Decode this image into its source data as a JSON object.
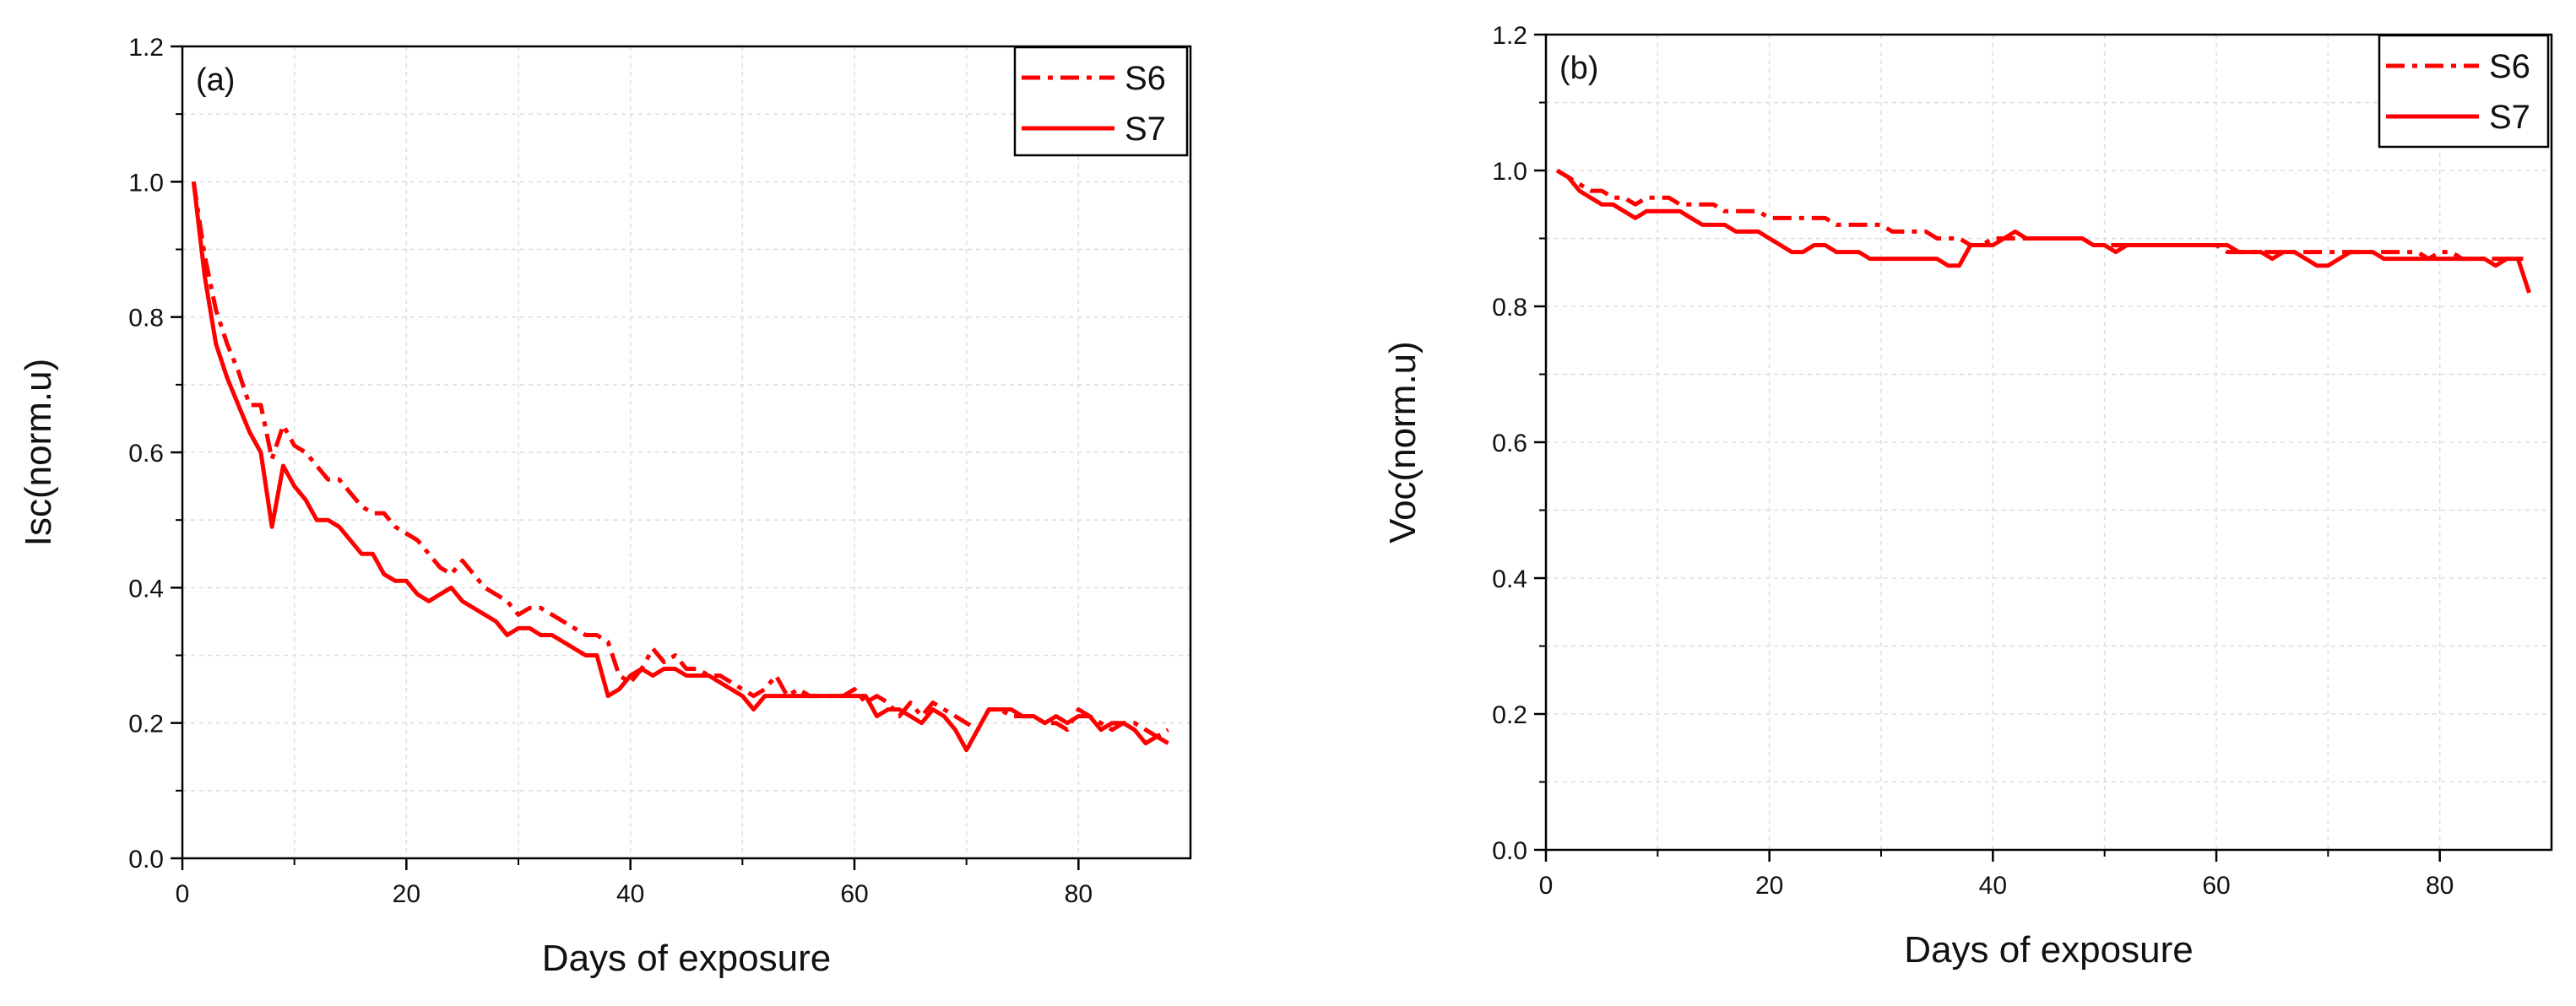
{
  "chart_data": [
    {
      "type": "line",
      "panel_label": "(a)",
      "xlabel": "Days of exposure",
      "ylabel": "Isc(norm.u)",
      "xlim": [
        0,
        90
      ],
      "ylim": [
        0,
        1.2
      ],
      "xticks": [
        0,
        20,
        40,
        60,
        80
      ],
      "xtick_labels": [
        "0",
        "20",
        "40",
        "60",
        "80"
      ],
      "yticks": [
        0,
        0.2,
        0.4,
        0.6,
        0.8,
        1.0,
        1.2
      ],
      "ytick_labels": [
        "0.0",
        "0.2",
        "0.4",
        "0.6",
        "0.8",
        "1.0",
        "1.2"
      ],
      "grid": true,
      "legend_position": "top-right",
      "series": [
        {
          "name": "S6",
          "style": "dash-dot",
          "color": "#ff0000",
          "x": [
            1,
            2,
            3,
            4,
            5,
            6,
            7,
            8,
            9,
            10,
            11,
            12,
            13,
            14,
            15,
            16,
            17,
            18,
            19,
            20,
            21,
            22,
            23,
            24,
            25,
            26,
            27,
            28,
            29,
            30,
            31,
            32,
            33,
            34,
            35,
            36,
            37,
            38,
            39,
            40,
            41,
            42,
            43,
            44,
            45,
            46,
            47,
            48,
            49,
            50,
            51,
            52,
            53,
            54,
            55,
            56,
            57,
            58,
            59,
            60,
            61,
            62,
            63,
            64,
            65,
            66,
            67,
            68,
            69,
            70,
            71,
            72,
            73,
            74,
            75,
            76,
            77,
            78,
            79,
            80,
            81,
            82,
            83,
            84,
            85,
            86,
            87,
            88
          ],
          "values": [
            1.0,
            0.89,
            0.81,
            0.76,
            0.72,
            0.67,
            0.67,
            0.59,
            0.64,
            0.61,
            0.6,
            0.58,
            0.56,
            0.56,
            0.54,
            0.52,
            0.51,
            0.51,
            0.49,
            0.48,
            0.47,
            0.45,
            0.43,
            0.42,
            0.44,
            0.42,
            0.4,
            0.39,
            0.38,
            0.36,
            0.37,
            0.37,
            0.36,
            0.35,
            0.34,
            0.33,
            0.33,
            0.32,
            0.27,
            0.26,
            0.28,
            0.31,
            0.29,
            0.3,
            0.28,
            0.28,
            0.27,
            0.27,
            0.26,
            0.25,
            0.24,
            0.25,
            0.27,
            0.24,
            0.25,
            0.24,
            0.24,
            0.24,
            0.24,
            0.25,
            0.23,
            0.24,
            0.23,
            0.21,
            0.23,
            0.21,
            0.23,
            0.22,
            0.21,
            0.2,
            0.19,
            0.22,
            0.22,
            0.21,
            0.21,
            0.21,
            0.2,
            0.2,
            0.19,
            0.22,
            0.21,
            0.2,
            0.19,
            0.2,
            0.2,
            0.19,
            0.18,
            0.19
          ]
        },
        {
          "name": "S7",
          "style": "solid",
          "color": "#ff0000",
          "x": [
            1,
            2,
            3,
            4,
            5,
            6,
            7,
            8,
            9,
            10,
            11,
            12,
            13,
            14,
            15,
            16,
            17,
            18,
            19,
            20,
            21,
            22,
            23,
            24,
            25,
            26,
            27,
            28,
            29,
            30,
            31,
            32,
            33,
            34,
            35,
            36,
            37,
            38,
            39,
            40,
            41,
            42,
            43,
            44,
            45,
            46,
            47,
            48,
            49,
            50,
            51,
            52,
            53,
            54,
            55,
            56,
            57,
            58,
            59,
            60,
            61,
            62,
            63,
            64,
            65,
            66,
            67,
            68,
            69,
            70,
            71,
            72,
            73,
            74,
            75,
            76,
            77,
            78,
            79,
            80,
            81,
            82,
            83,
            84,
            85,
            86,
            87,
            88
          ],
          "values": [
            1.0,
            0.86,
            0.76,
            0.71,
            0.67,
            0.63,
            0.6,
            0.49,
            0.58,
            0.55,
            0.53,
            0.5,
            0.5,
            0.49,
            0.47,
            0.45,
            0.45,
            0.42,
            0.41,
            0.41,
            0.39,
            0.38,
            0.39,
            0.4,
            0.38,
            0.37,
            0.36,
            0.35,
            0.33,
            0.34,
            0.34,
            0.33,
            0.33,
            0.32,
            0.31,
            0.3,
            0.3,
            0.24,
            0.25,
            0.27,
            0.28,
            0.27,
            0.28,
            0.28,
            0.27,
            0.27,
            0.27,
            0.26,
            0.25,
            0.24,
            0.22,
            0.24,
            0.24,
            0.24,
            0.24,
            0.24,
            0.24,
            0.24,
            0.24,
            0.24,
            0.24,
            0.21,
            0.22,
            0.22,
            0.21,
            0.2,
            0.22,
            0.21,
            0.19,
            0.16,
            0.19,
            0.22,
            0.22,
            0.22,
            0.21,
            0.21,
            0.2,
            0.21,
            0.2,
            0.21,
            0.21,
            0.19,
            0.2,
            0.2,
            0.19,
            0.17,
            0.18,
            0.17
          ]
        }
      ]
    },
    {
      "type": "line",
      "panel_label": "(b)",
      "xlabel": "Days of exposure",
      "ylabel": "Voc(norm.u)",
      "xlim": [
        0,
        90
      ],
      "ylim": [
        0,
        1.2
      ],
      "xticks": [
        0,
        20,
        40,
        60,
        80
      ],
      "xtick_labels": [
        "0",
        "20",
        "40",
        "60",
        "80"
      ],
      "yticks": [
        0,
        0.2,
        0.4,
        0.6,
        0.8,
        1.0,
        1.2
      ],
      "ytick_labels": [
        "0.0",
        "0.2",
        "0.4",
        "0.6",
        "0.8",
        "1.0",
        "1.2"
      ],
      "grid": true,
      "legend_position": "top-right",
      "series": [
        {
          "name": "S6",
          "style": "dash-dot",
          "color": "#ff0000",
          "x": [
            1,
            2,
            3,
            4,
            5,
            6,
            7,
            8,
            9,
            10,
            11,
            12,
            13,
            14,
            15,
            16,
            17,
            18,
            19,
            20,
            21,
            22,
            23,
            24,
            25,
            26,
            27,
            28,
            29,
            30,
            31,
            32,
            33,
            34,
            35,
            36,
            37,
            38,
            39,
            40,
            41,
            42,
            43,
            44,
            45,
            46,
            47,
            48,
            49,
            50,
            51,
            52,
            53,
            54,
            55,
            56,
            57,
            58,
            59,
            60,
            61,
            62,
            63,
            64,
            65,
            66,
            67,
            68,
            69,
            70,
            71,
            72,
            73,
            74,
            75,
            76,
            77,
            78,
            79,
            80,
            81,
            82,
            83,
            84,
            85,
            86,
            87,
            88
          ],
          "values": [
            1.0,
            0.99,
            0.98,
            0.97,
            0.97,
            0.96,
            0.96,
            0.95,
            0.96,
            0.96,
            0.96,
            0.95,
            0.95,
            0.95,
            0.95,
            0.94,
            0.94,
            0.94,
            0.94,
            0.93,
            0.93,
            0.93,
            0.93,
            0.93,
            0.93,
            0.92,
            0.92,
            0.92,
            0.92,
            0.92,
            0.91,
            0.91,
            0.91,
            0.91,
            0.9,
            0.9,
            0.9,
            0.89,
            0.89,
            0.9,
            0.9,
            0.9,
            0.9,
            0.9,
            0.9,
            0.9,
            0.9,
            0.9,
            0.89,
            0.89,
            0.89,
            0.89,
            0.89,
            0.89,
            0.89,
            0.89,
            0.89,
            0.89,
            0.89,
            0.89,
            0.88,
            0.88,
            0.88,
            0.88,
            0.88,
            0.88,
            0.88,
            0.88,
            0.88,
            0.88,
            0.88,
            0.88,
            0.88,
            0.88,
            0.88,
            0.88,
            0.88,
            0.88,
            0.87,
            0.88,
            0.88,
            0.87,
            0.87,
            0.87,
            0.87,
            0.87,
            0.87,
            0.87
          ]
        },
        {
          "name": "S7",
          "style": "solid",
          "color": "#ff0000",
          "x": [
            1,
            2,
            3,
            4,
            5,
            6,
            7,
            8,
            9,
            10,
            11,
            12,
            13,
            14,
            15,
            16,
            17,
            18,
            19,
            20,
            21,
            22,
            23,
            24,
            25,
            26,
            27,
            28,
            29,
            30,
            31,
            32,
            33,
            34,
            35,
            36,
            37,
            38,
            39,
            40,
            41,
            42,
            43,
            44,
            45,
            46,
            47,
            48,
            49,
            50,
            51,
            52,
            53,
            54,
            55,
            56,
            57,
            58,
            59,
            60,
            61,
            62,
            63,
            64,
            65,
            66,
            67,
            68,
            69,
            70,
            71,
            72,
            73,
            74,
            75,
            76,
            77,
            78,
            79,
            80,
            81,
            82,
            83,
            84,
            85,
            86,
            87,
            88
          ],
          "values": [
            1.0,
            0.99,
            0.97,
            0.96,
            0.95,
            0.95,
            0.94,
            0.93,
            0.94,
            0.94,
            0.94,
            0.94,
            0.93,
            0.92,
            0.92,
            0.92,
            0.91,
            0.91,
            0.91,
            0.9,
            0.89,
            0.88,
            0.88,
            0.89,
            0.89,
            0.88,
            0.88,
            0.88,
            0.87,
            0.87,
            0.87,
            0.87,
            0.87,
            0.87,
            0.87,
            0.86,
            0.86,
            0.89,
            0.89,
            0.89,
            0.9,
            0.91,
            0.9,
            0.9,
            0.9,
            0.9,
            0.9,
            0.9,
            0.89,
            0.89,
            0.88,
            0.89,
            0.89,
            0.89,
            0.89,
            0.89,
            0.89,
            0.89,
            0.89,
            0.89,
            0.89,
            0.88,
            0.88,
            0.88,
            0.87,
            0.88,
            0.88,
            0.87,
            0.86,
            0.86,
            0.87,
            0.88,
            0.88,
            0.88,
            0.87,
            0.87,
            0.87,
            0.87,
            0.87,
            0.87,
            0.87,
            0.87,
            0.87,
            0.87,
            0.86,
            0.87,
            0.87,
            0.82
          ]
        }
      ]
    }
  ]
}
